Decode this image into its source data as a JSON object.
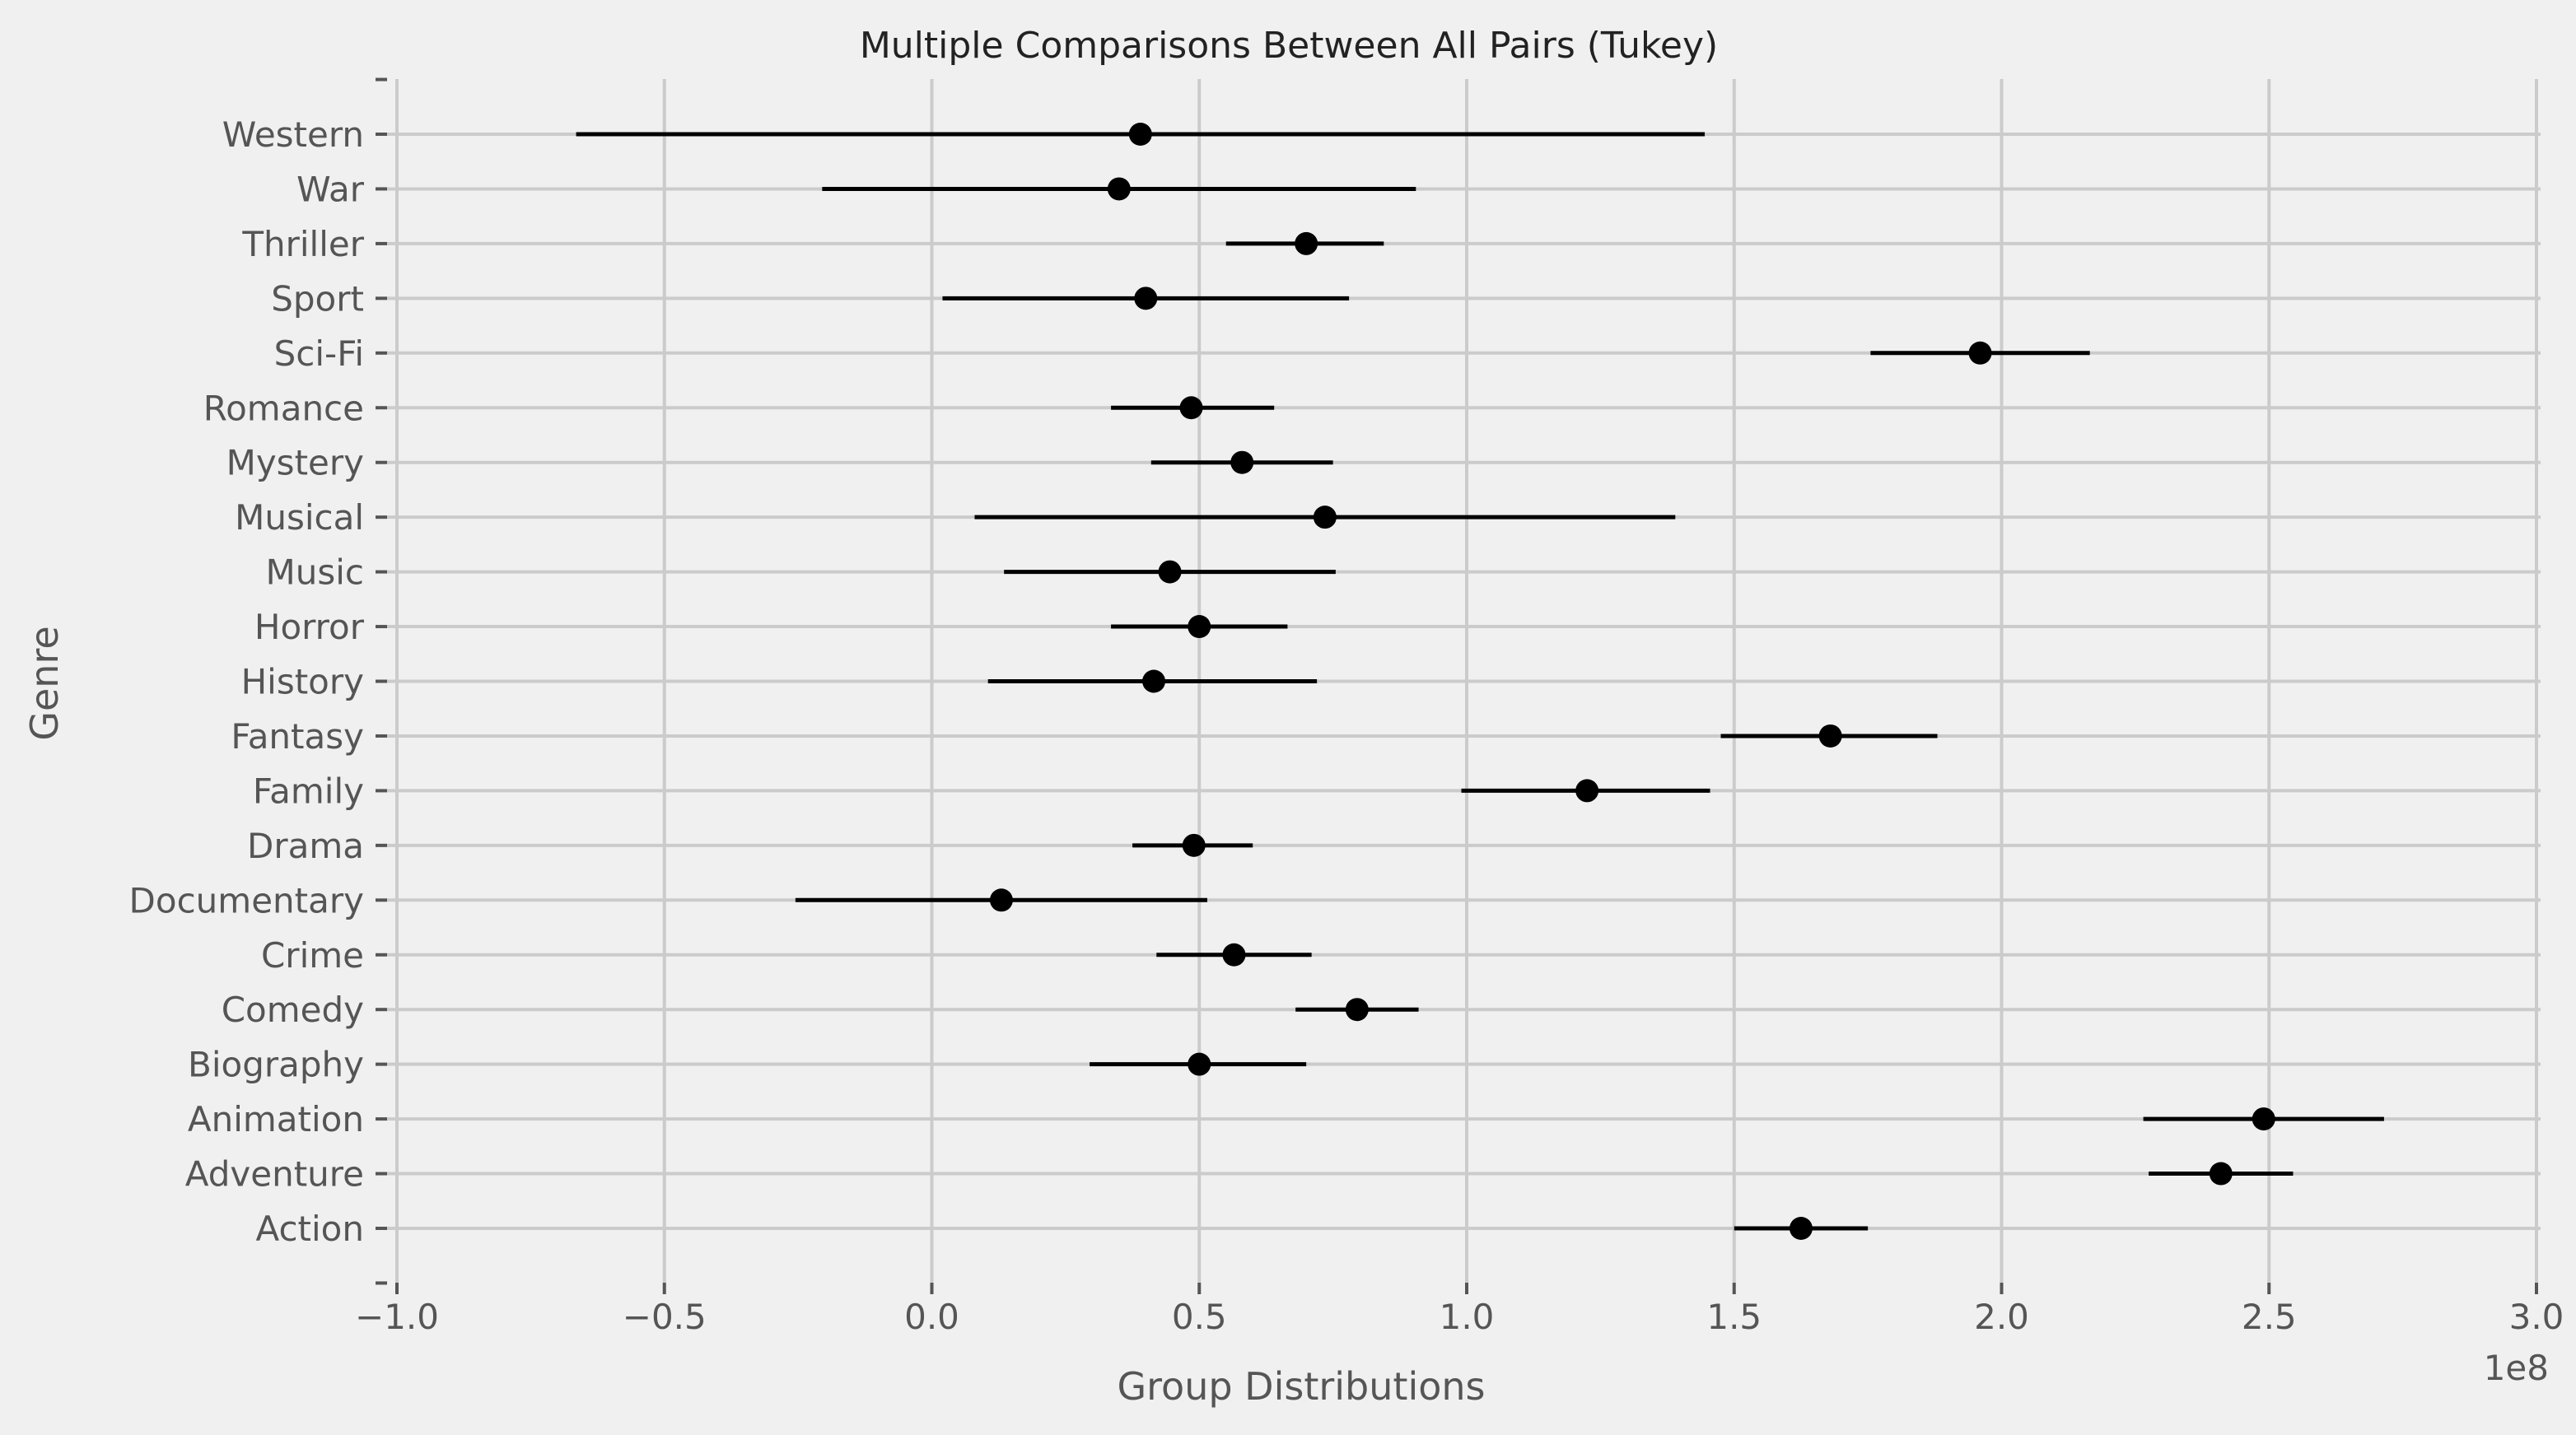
{
  "chart_data": {
    "type": "errorbar",
    "title": "Multiple Comparisons Between All Pairs (Tukey)",
    "xlabel": "Group Distributions",
    "ylabel": "Genre",
    "x_offset_label": "1e8",
    "xlim": [
      -1.0,
      3.05
    ],
    "x_ticks": [
      -1.0,
      -0.5,
      0.0,
      0.5,
      1.0,
      1.5,
      2.0,
      2.5,
      3.0
    ],
    "x_tick_labels": [
      "−1.0",
      "−0.5",
      "0.0",
      "0.5",
      "1.0",
      "1.5",
      "2.0",
      "2.5",
      "3.0"
    ],
    "grid": true,
    "categories": [
      "Action",
      "Adventure",
      "Animation",
      "Biography",
      "Comedy",
      "Crime",
      "Documentary",
      "Drama",
      "Family",
      "Fantasy",
      "History",
      "Horror",
      "Music",
      "Musical",
      "Mystery",
      "Romance",
      "Sci-Fi",
      "Sport",
      "Thriller",
      "War",
      "Western"
    ],
    "points": [
      {
        "genre": "Action",
        "mean": 1.625,
        "lower": 1.5,
        "upper": 1.75
      },
      {
        "genre": "Adventure",
        "mean": 2.41,
        "lower": 2.275,
        "upper": 2.545
      },
      {
        "genre": "Animation",
        "mean": 2.49,
        "lower": 2.265,
        "upper": 2.715
      },
      {
        "genre": "Biography",
        "mean": 0.5,
        "lower": 0.295,
        "upper": 0.7
      },
      {
        "genre": "Comedy",
        "mean": 0.795,
        "lower": 0.68,
        "upper": 0.91
      },
      {
        "genre": "Crime",
        "mean": 0.565,
        "lower": 0.42,
        "upper": 0.71
      },
      {
        "genre": "Documentary",
        "mean": 0.13,
        "lower": -0.255,
        "upper": 0.515
      },
      {
        "genre": "Drama",
        "mean": 0.49,
        "lower": 0.375,
        "upper": 0.6
      },
      {
        "genre": "Family",
        "mean": 1.225,
        "lower": 0.99,
        "upper": 1.455
      },
      {
        "genre": "Fantasy",
        "mean": 1.68,
        "lower": 1.475,
        "upper": 1.88
      },
      {
        "genre": "History",
        "mean": 0.415,
        "lower": 0.105,
        "upper": 0.72
      },
      {
        "genre": "Horror",
        "mean": 0.5,
        "lower": 0.335,
        "upper": 0.665
      },
      {
        "genre": "Music",
        "mean": 0.445,
        "lower": 0.135,
        "upper": 0.755
      },
      {
        "genre": "Musical",
        "mean": 0.735,
        "lower": 0.08,
        "upper": 1.39
      },
      {
        "genre": "Mystery",
        "mean": 0.58,
        "lower": 0.41,
        "upper": 0.75
      },
      {
        "genre": "Romance",
        "mean": 0.485,
        "lower": 0.335,
        "upper": 0.64
      },
      {
        "genre": "Sci-Fi",
        "mean": 1.96,
        "lower": 1.755,
        "upper": 2.165
      },
      {
        "genre": "Sport",
        "mean": 0.4,
        "lower": 0.02,
        "upper": 0.78
      },
      {
        "genre": "Thriller",
        "mean": 0.7,
        "lower": 0.55,
        "upper": 0.845
      },
      {
        "genre": "War",
        "mean": 0.35,
        "lower": -0.205,
        "upper": 0.905
      },
      {
        "genre": "Western",
        "mean": 0.39,
        "lower": -0.665,
        "upper": 1.445
      }
    ]
  },
  "colors": {
    "background": "#f0f0f0",
    "grid": "#cbcbcb",
    "marker": "#000000",
    "text": "#555555"
  }
}
